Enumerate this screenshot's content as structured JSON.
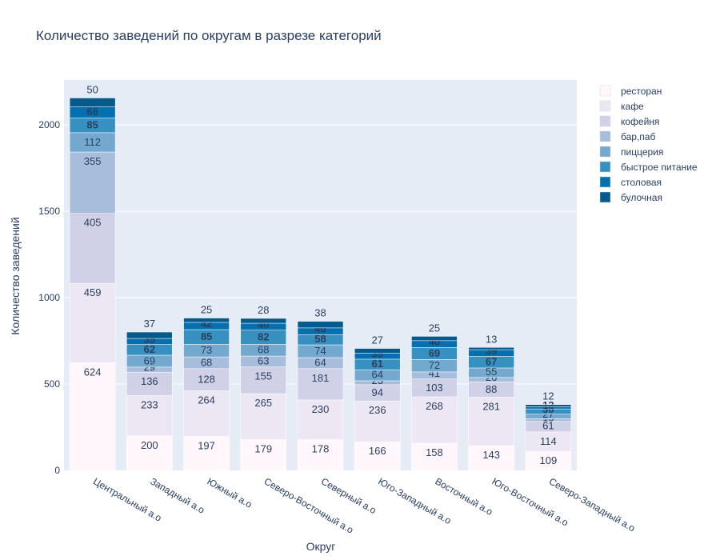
{
  "chart_data": {
    "type": "bar",
    "stacked": true,
    "title": "Количество заведений по округам в разрезе категорий",
    "xlabel": "Округ",
    "ylabel": "Количество заведений",
    "ylim": [
      0,
      2260
    ],
    "yticks": [
      0,
      500,
      1000,
      1500,
      2000
    ],
    "grid": true,
    "legend_position": "right",
    "categories": [
      "Центральный а.о",
      "Западный а.о",
      "Южный а.о",
      "Северо-Восточный а.о",
      "Северный а.о",
      "Юго-Западный а.о",
      "Восточный а.о",
      "Юго-Восточный а.о",
      "Северо-Западный а.о"
    ],
    "series": [
      {
        "name": "ресторан",
        "color": "#fff7fb",
        "label_color": "#2a3f5f",
        "values": [
          624,
          200,
          197,
          179,
          178,
          166,
          158,
          143,
          109
        ]
      },
      {
        "name": "кафе",
        "color": "#ece7f2",
        "label_color": "#2a3f5f",
        "values": [
          459,
          233,
          264,
          265,
          230,
          236,
          268,
          281,
          114
        ]
      },
      {
        "name": "кофейня",
        "color": "#d0d1e6",
        "label_color": "#2a3f5f",
        "values": [
          405,
          136,
          128,
          155,
          181,
          94,
          103,
          88,
          61
        ]
      },
      {
        "name": "бар,паб",
        "color": "#a6bddb",
        "label_color": "#2a3f5f",
        "values": [
          355,
          29,
          68,
          63,
          64,
          23,
          41,
          26,
          15
        ]
      },
      {
        "name": "пиццерия",
        "color": "#74a9cf",
        "label_color": "#2a3f5f",
        "values": [
          112,
          69,
          73,
          68,
          74,
          64,
          72,
          55,
          27
        ]
      },
      {
        "name": "быстрое питание",
        "color": "#3690c0",
        "label_color": "#ffffff",
        "values": [
          85,
          62,
          85,
          82,
          58,
          61,
          69,
          67,
          30
        ]
      },
      {
        "name": "столовая",
        "color": "#0570b0",
        "label_color": "#ffffff",
        "values": [
          66,
          35,
          42,
          40,
          40,
          35,
          40,
          39,
          13
        ]
      },
      {
        "name": "булочная",
        "color": "#045a8d",
        "label_color": "#2a3f5f",
        "values": [
          50,
          37,
          25,
          28,
          38,
          27,
          25,
          13,
          12
        ]
      }
    ]
  }
}
